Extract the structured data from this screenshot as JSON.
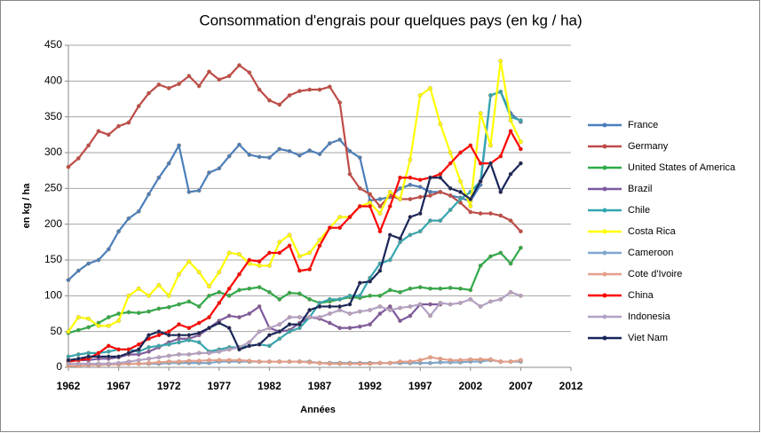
{
  "chart_data": {
    "type": "line",
    "title": "Consommation d'engrais pour quelques pays  (en kg / ha)",
    "x_label": "Années",
    "y_label": "en kg / ha",
    "x": [
      1962,
      1963,
      1964,
      1965,
      1966,
      1967,
      1968,
      1969,
      1970,
      1971,
      1972,
      1973,
      1974,
      1975,
      1976,
      1977,
      1978,
      1979,
      1980,
      1981,
      1982,
      1983,
      1984,
      1985,
      1986,
      1987,
      1988,
      1989,
      1990,
      1991,
      1992,
      1993,
      1994,
      1995,
      1996,
      1997,
      1998,
      1999,
      2000,
      2001,
      2002,
      2003,
      2004,
      2005,
      2006,
      2007
    ],
    "xlim": [
      1962,
      2012
    ],
    "xticks": [
      1962,
      1967,
      1972,
      1977,
      1982,
      1987,
      1992,
      1997,
      2002,
      2007,
      2012
    ],
    "ylim": [
      0,
      450
    ],
    "yticks": [
      0,
      50,
      100,
      150,
      200,
      250,
      300,
      350,
      400,
      450
    ],
    "grid": true,
    "series": [
      {
        "name": "France",
        "color": "#4a7ebb",
        "values": [
          122,
          135,
          145,
          150,
          165,
          190,
          208,
          218,
          242,
          265,
          285,
          310,
          245,
          247,
          272,
          278,
          295,
          311,
          297,
          294,
          293,
          305,
          302,
          296,
          303,
          298,
          313,
          318,
          302,
          293,
          233,
          235,
          238,
          250,
          255,
          252,
          245,
          245,
          240,
          237,
          232,
          255,
          380,
          385,
          355,
          343
        ]
      },
      {
        "name": "Germany",
        "color": "#be4b48",
        "values": [
          280,
          292,
          310,
          330,
          325,
          337,
          342,
          365,
          383,
          395,
          390,
          396,
          407,
          393,
          413,
          402,
          407,
          422,
          412,
          388,
          373,
          367,
          380,
          386,
          388,
          388,
          392,
          370,
          270,
          250,
          242,
          225,
          240,
          235,
          235,
          238,
          240,
          245,
          240,
          230,
          217,
          215,
          215,
          212,
          205,
          190
        ]
      },
      {
        "name": "United States of America",
        "color": "#2eaa4a",
        "values": [
          48,
          52,
          56,
          62,
          70,
          75,
          77,
          76,
          78,
          82,
          84,
          88,
          92,
          85,
          100,
          105,
          100,
          108,
          110,
          112,
          105,
          95,
          104,
          103,
          95,
          90,
          92,
          95,
          98,
          97,
          100,
          100,
          108,
          105,
          110,
          112,
          110,
          110,
          111,
          110,
          108,
          142,
          155,
          160,
          145,
          167
        ]
      },
      {
        "name": "Brazil",
        "color": "#7d5aa0",
        "values": [
          10,
          10,
          10,
          12,
          12,
          14,
          18,
          18,
          22,
          28,
          35,
          40,
          40,
          45,
          55,
          65,
          72,
          70,
          75,
          85,
          55,
          50,
          52,
          62,
          70,
          68,
          62,
          55,
          55,
          57,
          60,
          75,
          85,
          65,
          72,
          88,
          88,
          88,
          null,
          null,
          null,
          null,
          null,
          null,
          null,
          null
        ]
      },
      {
        "name": "Chile",
        "color": "#33a6b0",
        "values": [
          15,
          18,
          20,
          20,
          22,
          25,
          25,
          22,
          28,
          30,
          32,
          35,
          38,
          35,
          22,
          25,
          28,
          28,
          30,
          32,
          30,
          40,
          50,
          55,
          70,
          90,
          95,
          95,
          100,
          100,
          125,
          145,
          150,
          175,
          185,
          190,
          205,
          205,
          220,
          235,
          245,
          260,
          380,
          385,
          350,
          345
        ]
      },
      {
        "name": "Costa Rica",
        "color": "#ffff00",
        "values": [
          50,
          70,
          68,
          58,
          58,
          65,
          100,
          110,
          100,
          115,
          100,
          130,
          148,
          133,
          113,
          133,
          160,
          158,
          145,
          142,
          142,
          175,
          185,
          155,
          160,
          178,
          195,
          210,
          210,
          225,
          230,
          215,
          245,
          235,
          290,
          380,
          390,
          340,
          300,
          260,
          225,
          355,
          310,
          428,
          345,
          315
        ]
      },
      {
        "name": "Cameroon",
        "color": "#7fa8d0",
        "values": [
          5,
          5,
          5,
          5,
          5,
          5,
          5,
          5,
          5,
          5,
          6,
          6,
          6,
          6,
          6,
          8,
          8,
          8,
          8,
          8,
          8,
          8,
          8,
          8,
          8,
          6,
          6,
          6,
          6,
          6,
          6,
          6,
          6,
          6,
          6,
          6,
          6,
          7,
          7,
          7,
          8,
          8,
          10,
          8,
          8,
          8
        ]
      },
      {
        "name": "Cote d'Ivoire",
        "color": "#e6a08c",
        "values": [
          2,
          2,
          3,
          3,
          4,
          4,
          5,
          5,
          6,
          7,
          8,
          8,
          9,
          9,
          10,
          10,
          10,
          10,
          9,
          8,
          8,
          8,
          8,
          8,
          7,
          6,
          5,
          5,
          5,
          5,
          5,
          6,
          6,
          8,
          8,
          10,
          14,
          12,
          10,
          10,
          11,
          11,
          11,
          8,
          8,
          10
        ]
      },
      {
        "name": "China",
        "color": "#ff0000",
        "values": [
          8,
          10,
          12,
          20,
          30,
          25,
          25,
          32,
          40,
          45,
          50,
          60,
          55,
          62,
          70,
          90,
          110,
          130,
          150,
          148,
          160,
          160,
          170,
          135,
          137,
          170,
          195,
          195,
          210,
          225,
          225,
          190,
          225,
          265,
          265,
          262,
          265,
          270,
          285,
          300,
          310,
          285,
          285,
          295,
          330,
          305
        ]
      },
      {
        "name": "Indonesia",
        "color": "#b3a2c7",
        "values": [
          5,
          5,
          5,
          5,
          5,
          6,
          8,
          10,
          12,
          14,
          16,
          18,
          18,
          20,
          20,
          22,
          25,
          28,
          35,
          50,
          55,
          60,
          70,
          70,
          70,
          70,
          75,
          80,
          75,
          78,
          80,
          85,
          80,
          83,
          85,
          88,
          72,
          90,
          88,
          90,
          95,
          85,
          92,
          95,
          105,
          100
        ]
      },
      {
        "name": "Viet Nam",
        "color": "#17255a",
        "values": [
          10,
          12,
          15,
          15,
          15,
          15,
          20,
          25,
          45,
          50,
          45,
          45,
          45,
          48,
          55,
          62,
          55,
          25,
          30,
          32,
          45,
          50,
          60,
          60,
          80,
          85,
          85,
          85,
          88,
          118,
          120,
          135,
          185,
          180,
          210,
          215,
          265,
          265,
          250,
          245,
          235,
          260,
          285,
          245,
          270,
          285
        ]
      }
    ]
  }
}
